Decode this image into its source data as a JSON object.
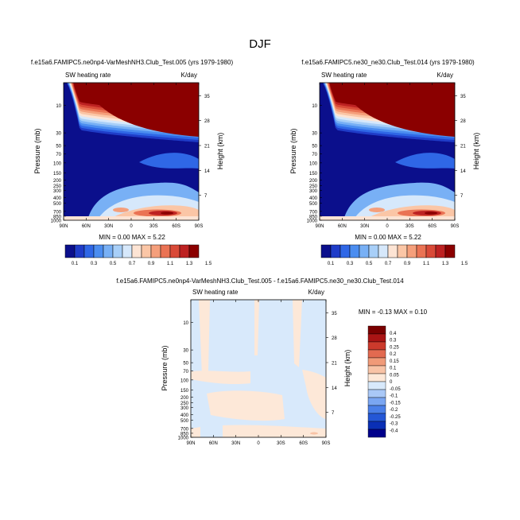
{
  "figure_title": "DJF",
  "colors": {
    "heat_scale": [
      "#0b0f8c",
      "#1f3cc8",
      "#2f67e6",
      "#4b8df0",
      "#78b0f5",
      "#a8cff8",
      "#d6e8fb",
      "#fde4d4",
      "#fbc6a6",
      "#f59f7b",
      "#ea7354",
      "#d94a38",
      "#bd2222",
      "#8b0000"
    ],
    "diff_scale": [
      "#00008b",
      "#0a2fb5",
      "#2457d6",
      "#4a7fe8",
      "#7aa6f2",
      "#a9c8f7",
      "#d8e9fb",
      "#fde8d8",
      "#f8c3a6",
      "#f09a78",
      "#e26a50",
      "#cc3a2c",
      "#aa1414",
      "#7a0000"
    ]
  },
  "chart_data": [
    {
      "type": "heatmap",
      "title": "f.e15a6.FAMIPC5.ne0np4-VarMeshNH3.Club_Test.005 (yrs 1979-1980)",
      "left_label": "SW heating rate",
      "right_label": "K/day",
      "ylabel": "Pressure (mb)",
      "y2label": "Height (km)",
      "x_ticks": [
        "90N",
        "60N",
        "30N",
        "0",
        "30S",
        "60S",
        "90S"
      ],
      "y_ticks": [
        "10",
        "30",
        "50",
        "70",
        "100",
        "150",
        "200",
        "250",
        "300",
        "400",
        "500",
        "700",
        "850",
        "1000"
      ],
      "y2_ticks": [
        "35",
        "28",
        "21",
        "14",
        "7"
      ],
      "stats": "MIN =  0.00  MAX =  5.22",
      "colorbar_labels": [
        "0.1",
        "0.3",
        "0.5",
        "0.7",
        "0.9",
        "1.1",
        "1.3",
        "1.5"
      ],
      "colorbar_levels": [
        0.1,
        0.2,
        0.3,
        0.4,
        0.5,
        0.6,
        0.7,
        0.8,
        0.9,
        1.0,
        1.1,
        1.2,
        1.3,
        1.4,
        1.5
      ],
      "ylim": [
        1000,
        4
      ]
    },
    {
      "type": "heatmap",
      "title": "f.e15a6.FAMIPC5.ne30_ne30.Club_Test.014 (yrs 1979-1980)",
      "left_label": "SW heating rate",
      "right_label": "K/day",
      "ylabel": "Pressure (mb)",
      "y2label": "Height (km)",
      "x_ticks": [
        "90N",
        "60N",
        "30N",
        "0",
        "30S",
        "60S",
        "90S"
      ],
      "y_ticks": [
        "10",
        "30",
        "50",
        "70",
        "100",
        "150",
        "200",
        "250",
        "300",
        "400",
        "500",
        "700",
        "850",
        "1000"
      ],
      "y2_ticks": [
        "35",
        "28",
        "21",
        "14",
        "7"
      ],
      "stats": "MIN =  0.00  MAX =  5.22",
      "colorbar_labels": [
        "0.1",
        "0.3",
        "0.5",
        "0.7",
        "0.9",
        "1.1",
        "1.3",
        "1.5"
      ],
      "colorbar_levels": [
        0.1,
        0.2,
        0.3,
        0.4,
        0.5,
        0.6,
        0.7,
        0.8,
        0.9,
        1.0,
        1.1,
        1.2,
        1.3,
        1.4,
        1.5
      ],
      "ylim": [
        1000,
        4
      ]
    },
    {
      "type": "heatmap",
      "title": "f.e15a6.FAMIPC5.ne0np4-VarMeshNH3.Club_Test.005 - f.e15a6.FAMIPC5.ne30_ne30.Club_Test.014",
      "left_label": "SW heating rate",
      "right_label": "K/day",
      "ylabel": "Pressure (mb)",
      "y2label": "Height (km)",
      "x_ticks": [
        "90N",
        "60N",
        "30N",
        "0",
        "30S",
        "60S",
        "90S"
      ],
      "y_ticks": [
        "10",
        "30",
        "50",
        "70",
        "100",
        "150",
        "200",
        "250",
        "300",
        "400",
        "500",
        "700",
        "850",
        "1000"
      ],
      "y2_ticks": [
        "35",
        "28",
        "21",
        "14",
        "7"
      ],
      "stats": "MIN = -0.13  MAX =  0.10",
      "colorbar_labels": [
        "0.4",
        "0.3",
        "0.25",
        "0.2",
        "0.15",
        "0.1",
        "0.05",
        "0",
        "-0.05",
        "-0.1",
        "-0.15",
        "-0.2",
        "-0.25",
        "-0.3",
        "-0.4"
      ],
      "ylim": [
        1000,
        4
      ]
    }
  ]
}
